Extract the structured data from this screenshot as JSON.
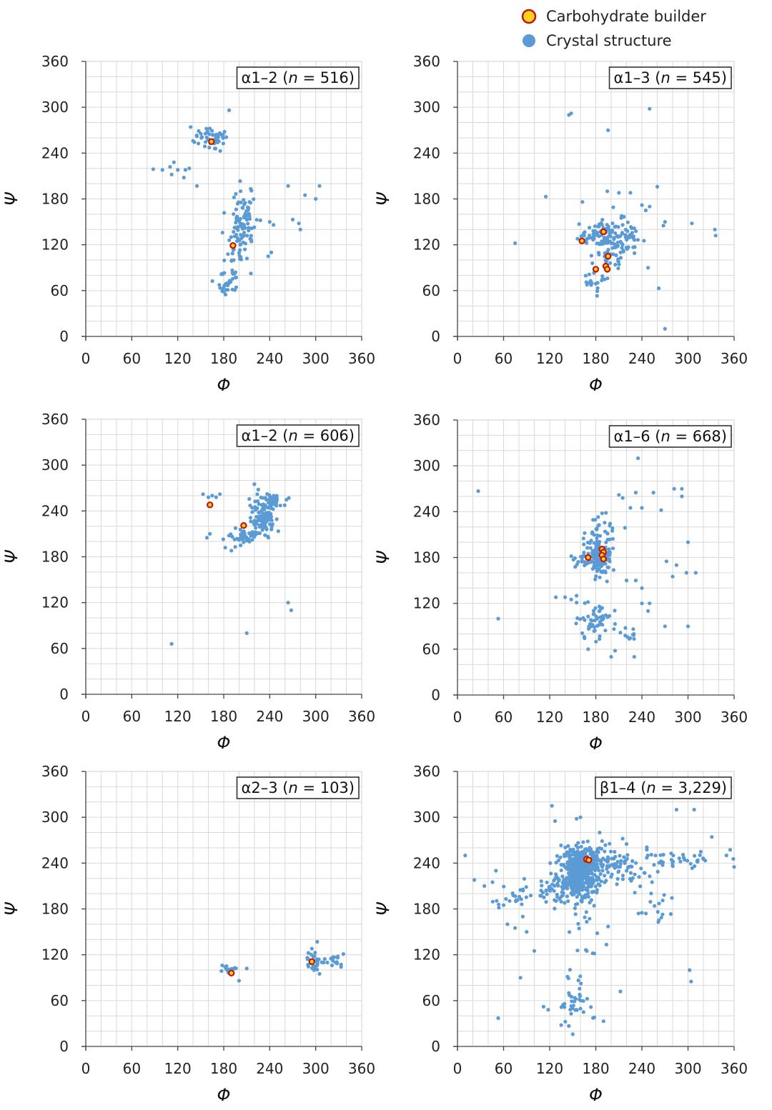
{
  "legend": {
    "builder_label": "Carbohydrate builder",
    "crystal_label": "Crystal structure",
    "builder_fill": "#ffd21f",
    "builder_stroke": "#c0150c",
    "crystal_color": "#5b9bd5"
  },
  "chart_data": [
    {
      "type": "scatter",
      "title": "α1–2 (n = 516)",
      "title_prefix": "α1–2 (",
      "title_n": "n",
      "title_suffix": " = 516)",
      "xlabel": "Φ",
      "ylabel": "Ψ",
      "xlim": [
        0,
        360
      ],
      "ylim": [
        0,
        360
      ],
      "ticks": [
        "0",
        "60",
        "120",
        "180",
        "240",
        "300",
        "360"
      ],
      "clusters": [
        {
          "cx": 165,
          "cy": 258,
          "sx": 9,
          "sy": 8,
          "n": 55
        },
        {
          "cx": 205,
          "cy": 150,
          "sx": 8,
          "sy": 20,
          "n": 90
        },
        {
          "cx": 185,
          "cy": 70,
          "sx": 7,
          "sy": 10,
          "n": 30
        },
        {
          "cx": 190,
          "cy": 100,
          "sx": 6,
          "sy": 12,
          "n": 15
        }
      ],
      "points": [
        [
          88,
          219
        ],
        [
          100,
          218
        ],
        [
          110,
          222
        ],
        [
          112,
          212
        ],
        [
          115,
          228
        ],
        [
          120,
          218
        ],
        [
          128,
          208
        ],
        [
          130,
          218
        ],
        [
          135,
          220
        ],
        [
          145,
          197
        ],
        [
          140,
          256
        ],
        [
          145,
          262
        ],
        [
          187,
          296
        ],
        [
          181,
          268
        ],
        [
          240,
          150
        ],
        [
          245,
          146
        ],
        [
          242,
          110
        ],
        [
          238,
          105
        ],
        [
          264,
          197
        ],
        [
          270,
          153
        ],
        [
          278,
          148
        ],
        [
          280,
          140
        ],
        [
          286,
          185
        ],
        [
          300,
          180
        ],
        [
          305,
          197
        ],
        [
          215,
          175
        ]
      ],
      "builder_points": [
        [
          164,
          255
        ],
        [
          192,
          119
        ]
      ]
    },
    {
      "type": "scatter",
      "title": "α1–3 (n = 545)",
      "title_prefix": "α1–3 (",
      "title_n": "n",
      "title_suffix": " = 545)",
      "xlabel": "Φ",
      "ylabel": "Ψ",
      "xlim": [
        0,
        360
      ],
      "ylim": [
        0,
        360
      ],
      "ticks": [
        "0",
        "60",
        "120",
        "180",
        "240",
        "300",
        "360"
      ],
      "clusters": [
        {
          "cx": 200,
          "cy": 125,
          "sx": 12,
          "sy": 17,
          "n": 120
        },
        {
          "cx": 170,
          "cy": 130,
          "sx": 9,
          "sy": 7,
          "n": 25
        },
        {
          "cx": 180,
          "cy": 70,
          "sx": 8,
          "sy": 8,
          "n": 20
        },
        {
          "cx": 225,
          "cy": 130,
          "sx": 8,
          "sy": 8,
          "n": 20
        }
      ],
      "points": [
        [
          145,
          290
        ],
        [
          148,
          292
        ],
        [
          250,
          298
        ],
        [
          196,
          270
        ],
        [
          115,
          183
        ],
        [
          75,
          122
        ],
        [
          195,
          190
        ],
        [
          210,
          188
        ],
        [
          225,
          188
        ],
        [
          240,
          172
        ],
        [
          245,
          165
        ],
        [
          250,
          170
        ],
        [
          260,
          196
        ],
        [
          270,
          150
        ],
        [
          268,
          145
        ],
        [
          305,
          148
        ],
        [
          335,
          140
        ],
        [
          336,
          132
        ],
        [
          262,
          63
        ],
        [
          270,
          10
        ],
        [
          248,
          90
        ]
      ],
      "builder_points": [
        [
          162,
          125
        ],
        [
          190,
          137
        ],
        [
          196,
          105
        ],
        [
          180,
          88
        ],
        [
          193,
          92
        ],
        [
          195,
          88
        ]
      ]
    },
    {
      "type": "scatter",
      "title": "α1–2 (n = 606)",
      "title_prefix": "α1–2 (",
      "title_n": "n",
      "title_suffix": " = 606)",
      "xlabel": "Φ",
      "ylabel": "Ψ",
      "xlim": [
        0,
        360
      ],
      "ylim": [
        0,
        360
      ],
      "ticks": [
        "0",
        "60",
        "120",
        "180",
        "240",
        "300",
        "360"
      ],
      "clusters": [
        {
          "cx": 230,
          "cy": 232,
          "sx": 9,
          "sy": 13,
          "n": 120
        },
        {
          "cx": 205,
          "cy": 208,
          "sx": 10,
          "sy": 5,
          "n": 40
        },
        {
          "cx": 245,
          "cy": 252,
          "sx": 8,
          "sy": 4,
          "n": 30
        }
      ],
      "points": [
        [
          153,
          262
        ],
        [
          160,
          258
        ],
        [
          165,
          260
        ],
        [
          170,
          258
        ],
        [
          175,
          262
        ],
        [
          158,
          205
        ],
        [
          162,
          210
        ],
        [
          182,
          192
        ],
        [
          190,
          188
        ],
        [
          195,
          193
        ],
        [
          202,
          195
        ],
        [
          220,
          275
        ],
        [
          225,
          268
        ],
        [
          265,
          257
        ],
        [
          264,
          120
        ],
        [
          268,
          110
        ],
        [
          210,
          80
        ],
        [
          112,
          66
        ]
      ],
      "builder_points": [
        [
          162,
          248
        ],
        [
          206,
          221
        ]
      ]
    },
    {
      "type": "scatter",
      "title": "α1–6 (n = 668)",
      "title_prefix": "α1–6 (",
      "title_n": "n",
      "title_suffix": " = 668)",
      "xlabel": "Φ",
      "ylabel": "Ψ",
      "xlim": [
        0,
        360
      ],
      "ylim": [
        0,
        360
      ],
      "ticks": [
        "0",
        "60",
        "120",
        "180",
        "240",
        "300",
        "360"
      ],
      "clusters": [
        {
          "cx": 185,
          "cy": 183,
          "sx": 8,
          "sy": 14,
          "n": 110
        },
        {
          "cx": 170,
          "cy": 180,
          "sx": 10,
          "sy": 6,
          "n": 40
        },
        {
          "cx": 180,
          "cy": 95,
          "sx": 12,
          "sy": 12,
          "n": 55
        },
        {
          "cx": 190,
          "cy": 220,
          "sx": 10,
          "sy": 10,
          "n": 25
        },
        {
          "cx": 225,
          "cy": 80,
          "sx": 4,
          "sy": 4,
          "n": 10
        }
      ],
      "points": [
        [
          27,
          267
        ],
        [
          53,
          100
        ],
        [
          128,
          128
        ],
        [
          140,
          128
        ],
        [
          148,
          125
        ],
        [
          155,
          130
        ],
        [
          235,
          310
        ],
        [
          210,
          262
        ],
        [
          215,
          258
        ],
        [
          225,
          245
        ],
        [
          232,
          265
        ],
        [
          240,
          245
        ],
        [
          255,
          265
        ],
        [
          265,
          242
        ],
        [
          282,
          270
        ],
        [
          292,
          270
        ],
        [
          292,
          260
        ],
        [
          300,
          200
        ],
        [
          310,
          160
        ],
        [
          280,
          155
        ],
        [
          272,
          175
        ],
        [
          285,
          170
        ],
        [
          298,
          160
        ],
        [
          270,
          90
        ],
        [
          300,
          90
        ],
        [
          240,
          120
        ],
        [
          250,
          120
        ],
        [
          248,
          110
        ],
        [
          240,
          140
        ],
        [
          232,
          150
        ],
        [
          220,
          150
        ],
        [
          200,
          50
        ],
        [
          205,
          58
        ],
        [
          230,
          50
        ],
        [
          170,
          60
        ]
      ],
      "builder_points": [
        [
          170,
          180
        ],
        [
          188,
          191
        ],
        [
          190,
          187
        ],
        [
          188,
          183
        ],
        [
          190,
          178
        ]
      ]
    },
    {
      "type": "scatter",
      "title": "α2–3 (n = 103)",
      "title_prefix": "α2–3 (",
      "title_n": "n",
      "title_suffix": " = 103)",
      "xlabel": "Φ",
      "ylabel": "Ψ",
      "xlim": [
        0,
        360
      ],
      "ylim": [
        0,
        360
      ],
      "ticks": [
        "0",
        "60",
        "120",
        "180",
        "240",
        "300",
        "360"
      ],
      "clusters": [
        {
          "cx": 190,
          "cy": 100,
          "sx": 4,
          "sy": 3,
          "n": 15
        },
        {
          "cx": 300,
          "cy": 110,
          "sx": 6,
          "sy": 7,
          "n": 35
        },
        {
          "cx": 325,
          "cy": 113,
          "sx": 4,
          "sy": 5,
          "n": 12
        }
      ],
      "points": [
        [
          178,
          106
        ],
        [
          200,
          86
        ],
        [
          210,
          102
        ],
        [
          302,
          137
        ],
        [
          295,
          128
        ],
        [
          333,
          104
        ],
        [
          305,
          95
        ]
      ],
      "builder_points": [
        [
          190,
          96
        ],
        [
          295,
          111
        ]
      ]
    },
    {
      "type": "scatter",
      "title": "β1–4 (n = 3,229)",
      "title_prefix": "β1–4 (",
      "title_n": "n",
      "title_suffix": " = 3,229)",
      "xlabel": "Φ",
      "ylabel": "Ψ",
      "xlim": [
        0,
        360
      ],
      "ylim": [
        0,
        360
      ],
      "ticks": [
        "0",
        "60",
        "120",
        "180",
        "240",
        "300",
        "360"
      ],
      "clusters": [
        {
          "cx": 160,
          "cy": 228,
          "sx": 13,
          "sy": 18,
          "n": 420
        },
        {
          "cx": 175,
          "cy": 245,
          "sx": 18,
          "sy": 10,
          "n": 90
        },
        {
          "cx": 130,
          "cy": 205,
          "sx": 15,
          "sy": 10,
          "n": 45
        },
        {
          "cx": 220,
          "cy": 232,
          "sx": 18,
          "sy": 8,
          "n": 45
        },
        {
          "cx": 152,
          "cy": 60,
          "sx": 10,
          "sy": 14,
          "n": 40
        },
        {
          "cx": 300,
          "cy": 245,
          "sx": 30,
          "sy": 8,
          "n": 45
        },
        {
          "cx": 80,
          "cy": 195,
          "sx": 22,
          "sy": 10,
          "n": 30
        },
        {
          "cx": 260,
          "cy": 185,
          "sx": 12,
          "sy": 12,
          "n": 15
        },
        {
          "cx": 170,
          "cy": 135,
          "sx": 12,
          "sy": 15,
          "n": 12
        }
      ],
      "points": [
        [
          10,
          250
        ],
        [
          22,
          218
        ],
        [
          35,
          210
        ],
        [
          50,
          230
        ],
        [
          60,
          185
        ],
        [
          65,
          160
        ],
        [
          75,
          155
        ],
        [
          85,
          170
        ],
        [
          90,
          150
        ],
        [
          100,
          125
        ],
        [
          123,
          315
        ],
        [
          127,
          295
        ],
        [
          155,
          298
        ],
        [
          160,
          300
        ],
        [
          185,
          280
        ],
        [
          215,
          272
        ],
        [
          220,
          265
        ],
        [
          285,
          310
        ],
        [
          308,
          310
        ],
        [
          350,
          250
        ],
        [
          360,
          235
        ],
        [
          302,
          100
        ],
        [
          304,
          85
        ],
        [
          82,
          90
        ],
        [
          53,
          37
        ],
        [
          112,
          52
        ],
        [
          118,
          48
        ],
        [
          135,
          28
        ],
        [
          150,
          16
        ],
        [
          178,
          38
        ],
        [
          190,
          33
        ],
        [
          196,
          157
        ],
        [
          212,
          72
        ],
        [
          240,
          175
        ],
        [
          262,
          165
        ]
      ],
      "builder_points": [
        [
          168,
          245
        ],
        [
          171,
          244
        ]
      ]
    }
  ]
}
